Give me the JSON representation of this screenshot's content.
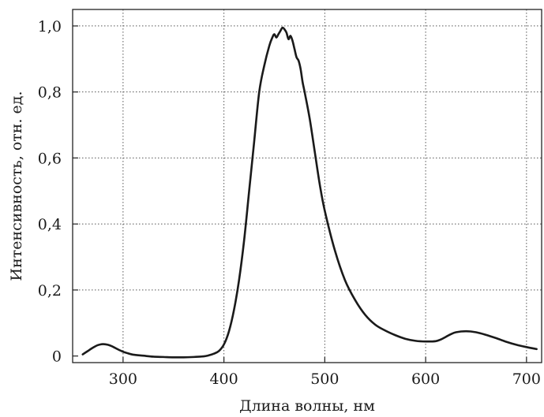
{
  "chart_data": {
    "type": "line",
    "title": "",
    "xlabel": "Длина волны, нм",
    "ylabel": "Интенсивность, отн. ед.",
    "xlim": [
      250,
      715
    ],
    "ylim": [
      -0.02,
      1.05
    ],
    "grid": true,
    "x_ticks": [
      {
        "value": 300,
        "label": "300"
      },
      {
        "value": 400,
        "label": "400"
      },
      {
        "value": 500,
        "label": "500"
      },
      {
        "value": 600,
        "label": "600"
      },
      {
        "value": 700,
        "label": "700"
      }
    ],
    "y_ticks": [
      {
        "value": 0,
        "label": "0"
      },
      {
        "value": 0.2,
        "label": "0,2"
      },
      {
        "value": 0.4,
        "label": "0,4"
      },
      {
        "value": 0.6,
        "label": "0,6"
      },
      {
        "value": 0.8,
        "label": "0,8"
      },
      {
        "value": 1.0,
        "label": "1,0"
      }
    ],
    "series": [
      {
        "color": "#1a1a1a",
        "x": [
          260,
          265,
          270,
          275,
          280,
          285,
          290,
          295,
          300,
          305,
          310,
          320,
          330,
          340,
          350,
          360,
          370,
          380,
          385,
          390,
          395,
          400,
          405,
          410,
          415,
          420,
          425,
          430,
          435,
          440,
          445,
          448,
          450,
          452,
          454,
          456,
          458,
          460,
          462,
          464,
          466,
          468,
          470,
          472,
          474,
          476,
          478,
          480,
          485,
          490,
          495,
          500,
          510,
          520,
          530,
          540,
          550,
          560,
          570,
          580,
          590,
          600,
          610,
          615,
          620,
          625,
          630,
          640,
          650,
          660,
          670,
          680,
          690,
          700,
          710
        ],
        "y": [
          0.005,
          0.015,
          0.025,
          0.033,
          0.036,
          0.034,
          0.028,
          0.02,
          0.013,
          0.008,
          0.004,
          0.001,
          -0.002,
          -0.003,
          -0.004,
          -0.004,
          -0.003,
          -0.001,
          0.002,
          0.007,
          0.015,
          0.035,
          0.075,
          0.14,
          0.23,
          0.35,
          0.5,
          0.65,
          0.8,
          0.88,
          0.94,
          0.965,
          0.975,
          0.965,
          0.975,
          0.985,
          0.995,
          0.99,
          0.98,
          0.96,
          0.97,
          0.955,
          0.93,
          0.905,
          0.895,
          0.87,
          0.83,
          0.8,
          0.72,
          0.62,
          0.52,
          0.44,
          0.32,
          0.23,
          0.17,
          0.125,
          0.095,
          0.077,
          0.063,
          0.052,
          0.046,
          0.044,
          0.045,
          0.05,
          0.058,
          0.066,
          0.072,
          0.075,
          0.072,
          0.064,
          0.054,
          0.043,
          0.034,
          0.027,
          0.021
        ]
      }
    ]
  }
}
